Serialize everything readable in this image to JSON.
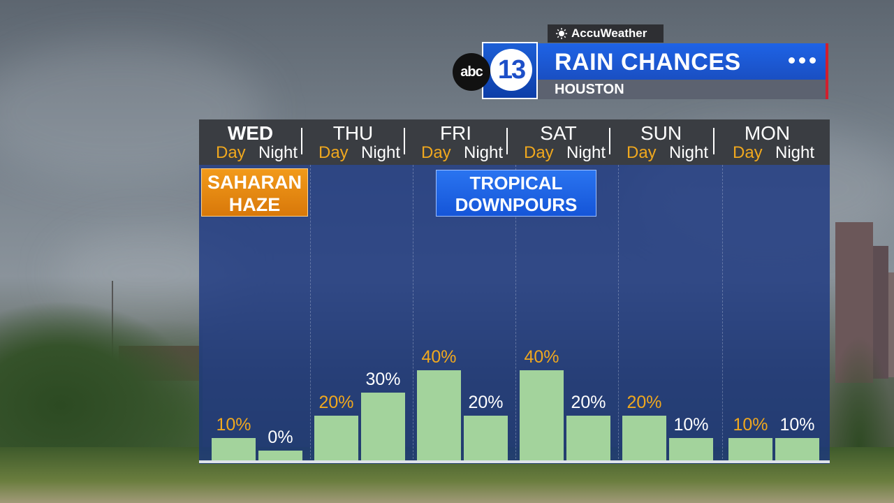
{
  "header": {
    "accuweather_label": "AccuWeather",
    "station_abc": "abc",
    "station_number": "13",
    "title": "RAIN CHANCES",
    "subtitle": "HOUSTON"
  },
  "colors": {
    "day_label": "#f0a81e",
    "night_label": "#ffffff",
    "bar": "#a3d39c",
    "panel": "#183480",
    "title_bar": "#1e63e6",
    "accent_red": "#d21e2d"
  },
  "callouts": {
    "saharan_line1": "SAHARAN",
    "saharan_line2": "HAZE",
    "tropical_line1": "TROPICAL",
    "tropical_line2": "DOWNPOURS"
  },
  "chart_data": {
    "type": "bar",
    "title": "RAIN CHANCES",
    "subtitle": "HOUSTON",
    "ylim": [
      0,
      100
    ],
    "grid": false,
    "days": [
      {
        "name": "WED",
        "bold": true,
        "day_label": "Day",
        "night_label": "Night",
        "day": 10,
        "night": 0
      },
      {
        "name": "THU",
        "bold": false,
        "day_label": "Day",
        "night_label": "Night",
        "day": 20,
        "night": 30
      },
      {
        "name": "FRI",
        "bold": false,
        "day_label": "Day",
        "night_label": "Night",
        "day": 40,
        "night": 20
      },
      {
        "name": "SAT",
        "bold": false,
        "day_label": "Day",
        "night_label": "Night",
        "day": 40,
        "night": 20
      },
      {
        "name": "SUN",
        "bold": false,
        "day_label": "Day",
        "night_label": "Night",
        "day": 20,
        "night": 10
      },
      {
        "name": "MON",
        "bold": false,
        "day_label": "Day",
        "night_label": "Night",
        "day": 10,
        "night": 10
      }
    ],
    "value_labels": [
      [
        "10%",
        "0%"
      ],
      [
        "20%",
        "30%"
      ],
      [
        "40%",
        "20%"
      ],
      [
        "40%",
        "20%"
      ],
      [
        "20%",
        "10%"
      ],
      [
        "10%",
        "10%"
      ]
    ]
  }
}
